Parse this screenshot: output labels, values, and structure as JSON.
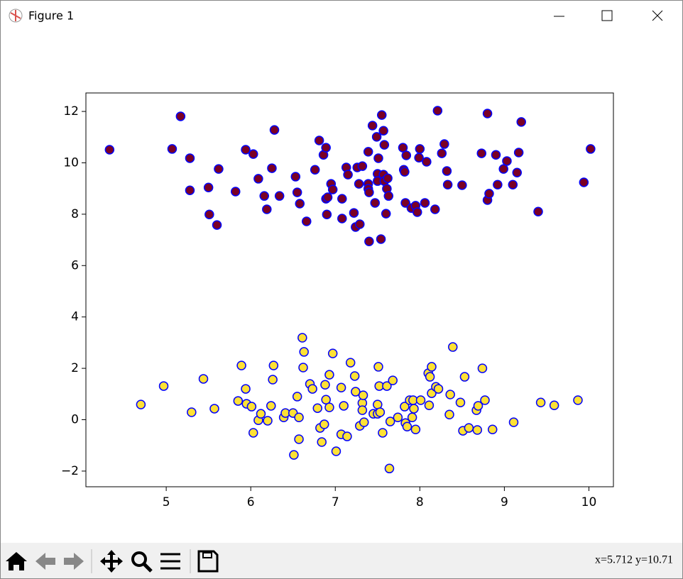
{
  "window": {
    "title": "Figure 1",
    "status": "x=5.712 y=10.71"
  },
  "chart_data": {
    "type": "scatter",
    "xlim": [
      4.05,
      10.29
    ],
    "ylim": [
      -2.61,
      12.72
    ],
    "xticks": [
      5,
      6,
      7,
      8,
      9,
      10
    ],
    "yticks": [
      {
        "value": -2,
        "label": "−2"
      },
      0,
      2,
      4,
      6,
      8,
      10,
      12
    ],
    "series": [
      {
        "color": "#7a0026",
        "edgecolor": "#0000ff",
        "x": [
          4.33,
          5.07,
          5.17,
          5.28,
          5.28,
          5.5,
          5.51,
          5.6,
          5.62,
          5.82,
          5.94,
          6.03,
          6.09,
          6.16,
          6.19,
          6.25,
          6.28,
          6.34,
          6.53,
          6.55,
          6.58,
          6.66,
          6.76,
          6.81,
          6.86,
          6.89,
          6.89,
          6.91,
          6.9,
          6.95,
          6.97,
          7.08,
          7.08,
          7.13,
          7.15,
          7.22,
          7.24,
          7.26,
          7.28,
          7.29,
          7.32,
          7.39,
          7.39,
          7.39,
          7.4,
          7.4,
          7.44,
          7.47,
          7.49,
          7.5,
          7.5,
          7.51,
          7.54,
          7.55,
          7.57,
          7.57,
          7.58,
          7.58,
          7.6,
          7.61,
          7.62,
          7.63,
          7.8,
          7.81,
          7.82,
          7.84,
          7.83,
          7.9,
          7.95,
          7.97,
          7.99,
          8.0,
          8.06,
          8.08,
          8.18,
          8.21,
          8.26,
          8.29,
          8.32,
          8.33,
          8.5,
          8.73,
          8.8,
          8.8,
          8.82,
          8.9,
          8.92,
          8.99,
          9.03,
          9.1,
          9.15,
          9.17,
          9.2,
          9.4,
          9.94,
          10.02
        ],
        "values": [
          10.51,
          10.54,
          11.81,
          10.18,
          8.93,
          9.04,
          7.99,
          7.58,
          9.76,
          8.88,
          10.51,
          10.34,
          9.38,
          8.71,
          8.19,
          9.79,
          11.28,
          8.71,
          9.46,
          8.85,
          8.41,
          7.72,
          9.73,
          10.87,
          10.31,
          10.59,
          8.6,
          8.66,
          7.99,
          9.18,
          8.96,
          8.6,
          7.83,
          9.82,
          9.54,
          8.05,
          7.5,
          9.82,
          9.18,
          7.61,
          9.87,
          10.43,
          9.18,
          8.99,
          8.85,
          6.94,
          11.45,
          8.44,
          11.01,
          9.57,
          9.29,
          10.18,
          7.03,
          11.86,
          11.25,
          9.54,
          10.7,
          9.29,
          8.02,
          8.99,
          9.4,
          8.71,
          10.59,
          9.73,
          9.65,
          10.29,
          8.44,
          8.24,
          8.33,
          8.08,
          10.2,
          10.54,
          8.44,
          10.04,
          8.19,
          12.03,
          10.37,
          10.73,
          9.68,
          9.15,
          9.13,
          10.37,
          11.92,
          8.55,
          8.8,
          10.31,
          9.15,
          9.76,
          10.07,
          9.15,
          9.62,
          10.4,
          11.59,
          8.1,
          9.24,
          10.54
        ]
      },
      {
        "color": "#ffe135",
        "edgecolor": "#0000ff",
        "x": [
          4.7,
          4.97,
          5.3,
          5.44,
          5.57,
          5.85,
          5.89,
          5.94,
          5.95,
          6.01,
          6.03,
          6.09,
          6.12,
          6.2,
          6.24,
          6.26,
          6.27,
          6.39,
          6.41,
          6.5,
          6.51,
          6.55,
          6.57,
          6.57,
          6.61,
          6.63,
          6.62,
          6.7,
          6.73,
          6.79,
          6.82,
          6.84,
          6.87,
          6.88,
          6.89,
          6.93,
          6.93,
          6.97,
          7.01,
          7.07,
          7.07,
          7.1,
          7.14,
          7.18,
          7.23,
          7.24,
          7.29,
          7.32,
          7.32,
          7.33,
          7.34,
          7.45,
          7.5,
          7.5,
          7.51,
          7.52,
          7.53,
          7.56,
          7.61,
          7.64,
          7.65,
          7.68,
          7.74,
          7.82,
          7.83,
          7.85,
          7.88,
          7.91,
          7.92,
          7.93,
          7.95,
          8.01,
          8.1,
          8.11,
          8.12,
          8.14,
          8.14,
          8.19,
          8.22,
          8.35,
          8.36,
          8.39,
          8.48,
          8.51,
          8.53,
          8.58,
          8.67,
          8.68,
          8.69,
          8.74,
          8.77,
          8.86,
          9.11,
          9.43,
          9.59,
          9.87
        ],
        "values": [
          0.59,
          1.31,
          0.29,
          1.59,
          0.43,
          0.73,
          2.11,
          1.2,
          0.62,
          0.51,
          -0.51,
          -0.02,
          0.23,
          -0.04,
          0.54,
          1.56,
          2.11,
          0.09,
          0.26,
          0.26,
          -1.37,
          0.9,
          -0.76,
          0.09,
          3.19,
          2.64,
          2.03,
          1.39,
          1.2,
          0.45,
          -0.32,
          -0.87,
          -0.18,
          1.36,
          0.78,
          1.75,
          0.48,
          2.58,
          -1.23,
          1.25,
          -0.57,
          0.54,
          -0.65,
          2.22,
          1.7,
          1.09,
          -0.24,
          0.65,
          0.37,
          0.95,
          -0.1,
          0.23,
          0.23,
          0.59,
          2.06,
          1.31,
          0.29,
          -0.51,
          1.31,
          -1.9,
          -0.07,
          1.53,
          0.09,
          0.51,
          -0.13,
          -0.27,
          0.76,
          0.09,
          0.76,
          0.43,
          -0.38,
          0.76,
          1.81,
          0.56,
          1.67,
          2.06,
          1.03,
          1.28,
          1.2,
          0.2,
          0.98,
          2.83,
          0.67,
          -0.43,
          1.67,
          -0.32,
          0.37,
          -0.4,
          0.54,
          2.0,
          0.76,
          -0.38,
          -0.1,
          0.67,
          0.56,
          0.76
        ]
      }
    ]
  }
}
